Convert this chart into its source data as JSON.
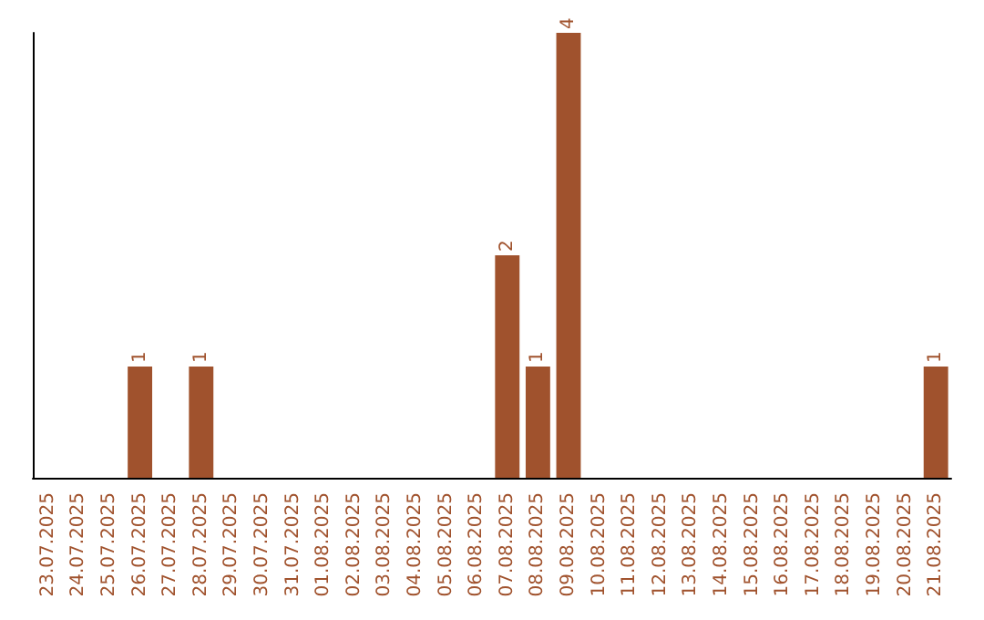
{
  "chart_data": {
    "type": "bar",
    "categories": [
      "23.07.2025",
      "24.07.2025",
      "25.07.2025",
      "26.07.2025",
      "27.07.2025",
      "28.07.2025",
      "29.07.2025",
      "30.07.2025",
      "31.07.2025",
      "01.08.2025",
      "02.08.2025",
      "03.08.2025",
      "04.08.2025",
      "05.08.2025",
      "06.08.2025",
      "07.08.2025",
      "08.08.2025",
      "09.08.2025",
      "10.08.2025",
      "11.08.2025",
      "12.08.2025",
      "13.08.2025",
      "14.08.2025",
      "15.08.2025",
      "16.08.2025",
      "17.08.2025",
      "18.08.2025",
      "19.08.2025",
      "20.08.2025",
      "21.08.2025"
    ],
    "values": [
      0,
      0,
      0,
      1,
      0,
      1,
      0,
      0,
      0,
      0,
      0,
      0,
      0,
      0,
      0,
      2,
      1,
      4,
      0,
      0,
      0,
      0,
      0,
      0,
      0,
      0,
      0,
      0,
      0,
      1
    ],
    "value_labels": [
      null,
      null,
      null,
      "1",
      null,
      "1",
      null,
      null,
      null,
      null,
      null,
      null,
      null,
      null,
      null,
      "2",
      "1",
      "4",
      null,
      null,
      null,
      null,
      null,
      null,
      null,
      null,
      null,
      null,
      null,
      "1"
    ],
    "color": "#a0522d",
    "grid": false,
    "tick_labels": "x"
  }
}
